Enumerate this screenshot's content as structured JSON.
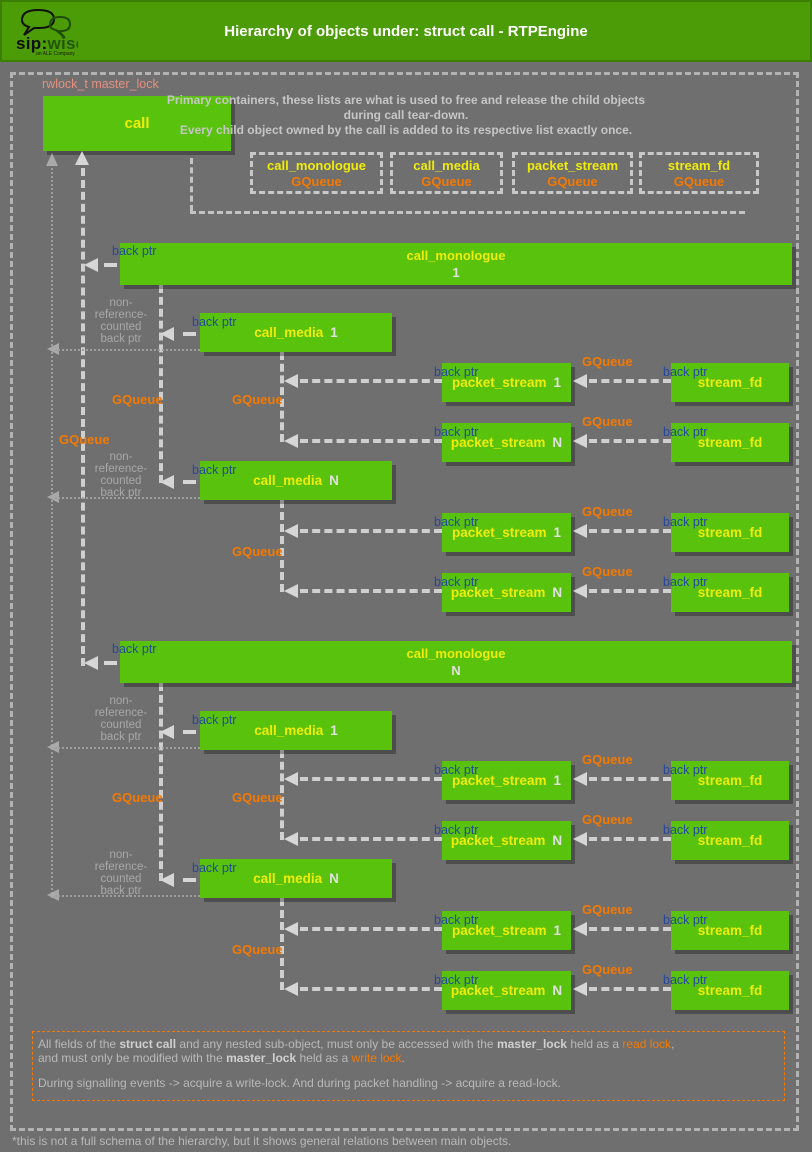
{
  "header": {
    "title": "Hierarchy of objects under: struct call - RTPEngine",
    "logo": {
      "sip": "sip:",
      "wise": "wise",
      "tagline": "an ALE Company"
    }
  },
  "intro": {
    "line1": "Primary containers, these lists are what is used to free and release the child objects",
    "line2": "during call tear-down.",
    "line3": "Every child object owned by the call is added to its respective list exactly once."
  },
  "labels": {
    "master_lock": "rwlock_t master_lock",
    "back_ptr": "back ptr",
    "gqueue": "GQueue",
    "non_ref": [
      "non-",
      "reference-",
      "counted",
      "back ptr"
    ]
  },
  "nodes": {
    "call": "call",
    "call_monologue": "call_monologue",
    "call_media": "call_media",
    "packet_stream": "packet_stream",
    "stream_fd": "stream_fd"
  },
  "indices": {
    "one": "1",
    "n": "N"
  },
  "containers": [
    {
      "name": "call_monologue",
      "type": "GQueue"
    },
    {
      "name": "call_media",
      "type": "GQueue"
    },
    {
      "name": "packet_stream",
      "type": "GQueue"
    },
    {
      "name": "stream_fd",
      "type": "GQueue"
    }
  ],
  "groups": [
    {
      "index": "1"
    },
    {
      "index": "N"
    }
  ],
  "lock_note": {
    "line1": [
      {
        "t": "All fields of the "
      },
      {
        "t": "struct call",
        "b": true
      },
      {
        "t": " and any nested sub-object, must only be accessed with the "
      },
      {
        "t": "master_lock",
        "b": true
      },
      {
        "t": " held as a "
      },
      {
        "t": "read lock",
        "c": "orange"
      },
      {
        "t": ","
      }
    ],
    "line2": [
      {
        "t": "and must only be modified with the "
      },
      {
        "t": "master_lock",
        "b": true
      },
      {
        "t": " held as a "
      },
      {
        "t": "write lock",
        "c": "orange"
      },
      {
        "t": "."
      }
    ],
    "line3": [
      {
        "t": "During signalling events -> acquire a write-lock. And during packet handling -> acquire a read-lock."
      }
    ]
  },
  "colors": {
    "accent_green": "#58c20d",
    "header_green": "#4b9c06",
    "yellow": "#f0ec08",
    "orange": "#f57900",
    "back_ptr_blue": "#25489d",
    "salmon": "#e59080"
  },
  "footer": "*this is not a full schema of the hierarchy, but it shows general relations between main objects."
}
